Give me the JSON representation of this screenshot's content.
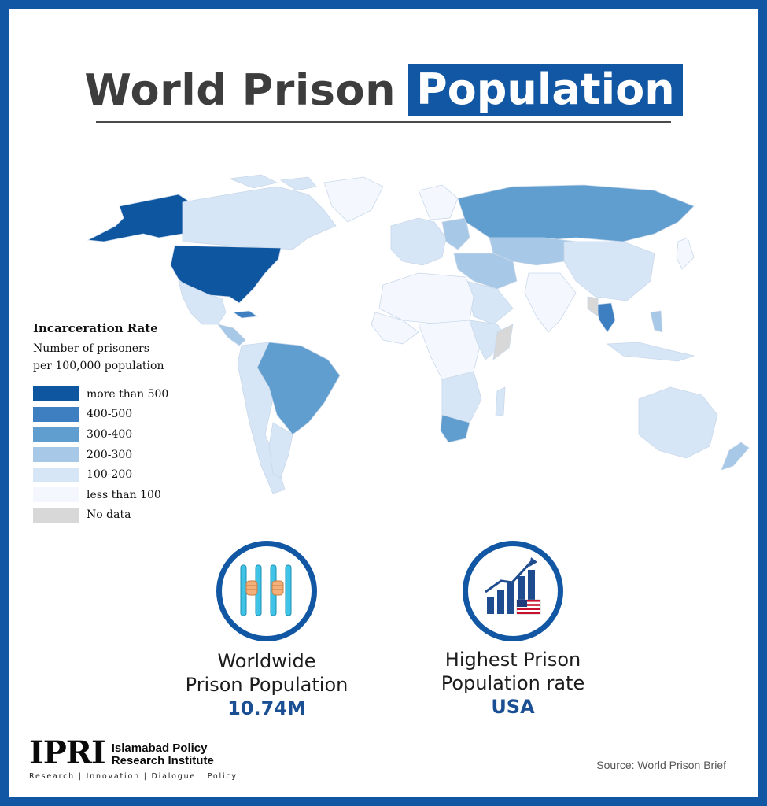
{
  "title": {
    "part1": "World Prison",
    "part2": "Population"
  },
  "legend": {
    "title": "Incarceration Rate",
    "subtitle_line1": "Number of prisoners",
    "subtitle_line2": "per 100,000 population",
    "items": [
      {
        "label": "more than 500",
        "color": "#0f56a0"
      },
      {
        "label": "400-500",
        "color": "#3d7fc1"
      },
      {
        "label": "300-400",
        "color": "#609ecf"
      },
      {
        "label": "200-300",
        "color": "#a7c8e6"
      },
      {
        "label": "100-200",
        "color": "#d7e6f6"
      },
      {
        "label": "less than 100",
        "color": "#f4f8fe"
      },
      {
        "label": "No data",
        "color": "#d8d8d8"
      }
    ]
  },
  "stats": [
    {
      "label_line1": "Worldwide",
      "label_line2": "Prison Population",
      "value": "10.74M",
      "icon": "prison-bars-icon"
    },
    {
      "label_line1": "Highest Prison",
      "label_line2": "Population rate",
      "value": "USA",
      "icon": "rising-bar-chart-icon"
    }
  ],
  "logo": {
    "mark": "IPRI",
    "name_line1": "Islamabad Policy",
    "name_line2": "Research Institute",
    "tagline": "Research | Innovation | Dialogue | Policy"
  },
  "source": "Source: World Prison Brief",
  "colors": {
    "brand_blue": "#1257a3",
    "title_gray": "#3d3d3d"
  }
}
